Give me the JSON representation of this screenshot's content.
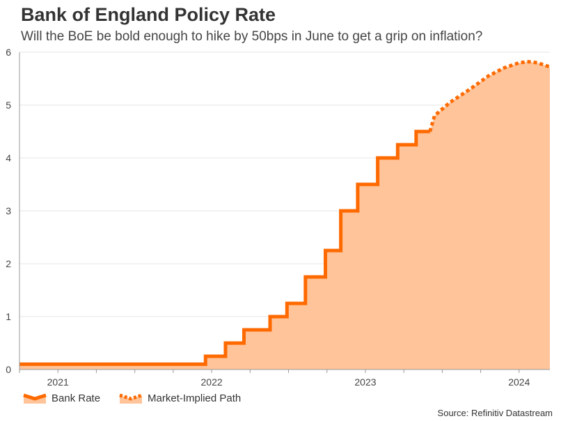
{
  "header": {
    "title": "Bank of England Policy Rate",
    "subtitle": "Will the BoE be bold enough to hike by 50bps in June to get a grip on inflation?"
  },
  "source": "Source: Refinitiv Datastream",
  "colors": {
    "line": "#FF6A00",
    "fill": "#FFC49A",
    "grid": "#E6E6E6",
    "axis": "#999999"
  },
  "chart_data": {
    "type": "line",
    "title": "Bank of England Policy Rate",
    "xlabel": "",
    "ylabel": "",
    "ylim": [
      0,
      6
    ],
    "xlim": [
      2020.75,
      2024.2
    ],
    "yticks": [
      "0",
      "1",
      "2",
      "3",
      "4",
      "5",
      "6"
    ],
    "xtick_labels": [
      {
        "label": "2021",
        "x": 2021.0
      },
      {
        "label": "2022",
        "x": 2022.0
      },
      {
        "label": "2023",
        "x": 2023.0
      },
      {
        "label": "2024",
        "x": 2024.0
      }
    ],
    "series": [
      {
        "name": "Bank Rate",
        "style": "solid-step",
        "points": [
          [
            2020.75,
            0.1
          ],
          [
            2021.96,
            0.1
          ],
          [
            2021.96,
            0.25
          ],
          [
            2022.09,
            0.25
          ],
          [
            2022.09,
            0.5
          ],
          [
            2022.21,
            0.5
          ],
          [
            2022.21,
            0.75
          ],
          [
            2022.38,
            0.75
          ],
          [
            2022.38,
            1.0
          ],
          [
            2022.49,
            1.0
          ],
          [
            2022.49,
            1.25
          ],
          [
            2022.61,
            1.25
          ],
          [
            2022.61,
            1.75
          ],
          [
            2022.74,
            1.75
          ],
          [
            2022.74,
            2.25
          ],
          [
            2022.84,
            2.25
          ],
          [
            2022.84,
            3.0
          ],
          [
            2022.95,
            3.0
          ],
          [
            2022.95,
            3.5
          ],
          [
            2023.08,
            3.5
          ],
          [
            2023.08,
            4.0
          ],
          [
            2023.21,
            4.0
          ],
          [
            2023.21,
            4.25
          ],
          [
            2023.33,
            4.25
          ],
          [
            2023.33,
            4.5
          ],
          [
            2023.42,
            4.5
          ]
        ]
      },
      {
        "name": "Market-Implied Path",
        "style": "dotted",
        "points": [
          [
            2023.42,
            4.5
          ],
          [
            2023.45,
            4.8
          ],
          [
            2023.55,
            5.05
          ],
          [
            2023.68,
            5.3
          ],
          [
            2023.8,
            5.55
          ],
          [
            2023.9,
            5.7
          ],
          [
            2024.0,
            5.8
          ],
          [
            2024.06,
            5.82
          ],
          [
            2024.12,
            5.8
          ],
          [
            2024.2,
            5.72
          ]
        ]
      }
    ],
    "legend": [
      "Bank Rate",
      "Market-Implied Path"
    ],
    "legend_position": "bottom-left"
  }
}
